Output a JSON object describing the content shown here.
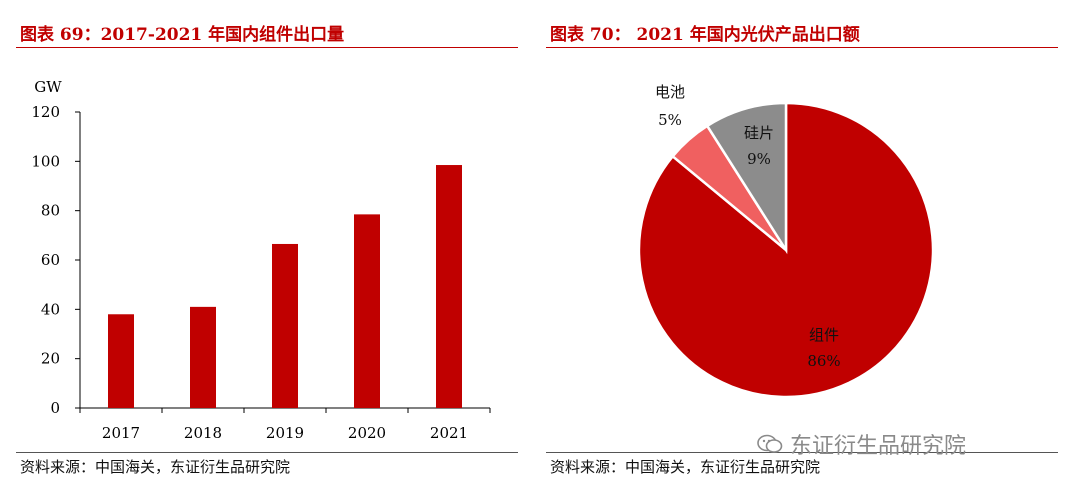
{
  "left": {
    "title": "图表 69：2017-2021 年国内组件出口量",
    "source": "资料来源：中国海关，东证衍生品研究院"
  },
  "right": {
    "title": "图表 70： 2021 年国内光伏产品出口额",
    "source": "资料来源：中国海关，东证衍生品研究院"
  },
  "watermark": "东证衍生品研究院",
  "colors": {
    "accent": "#c00000",
    "bar": "#c00000",
    "cell": "#f06060",
    "wafer": "#8c8c8c"
  },
  "chart_data": [
    {
      "type": "bar",
      "categories": [
        "2017",
        "2018",
        "2019",
        "2020",
        "2021"
      ],
      "values": [
        38,
        41,
        66.5,
        78.5,
        98.5
      ],
      "ylabel": "GW",
      "ylim": [
        0,
        120
      ],
      "yticks": [
        "0",
        "20",
        "40",
        "60",
        "80",
        "100",
        "120"
      ],
      "grid": false
    },
    {
      "type": "pie",
      "slices": [
        {
          "label": "组件",
          "pct_label": "86%",
          "value": 86
        },
        {
          "label": "电池",
          "pct_label": "5%",
          "value": 5
        },
        {
          "label": "硅片",
          "pct_label": "9%",
          "value": 9
        }
      ]
    }
  ]
}
